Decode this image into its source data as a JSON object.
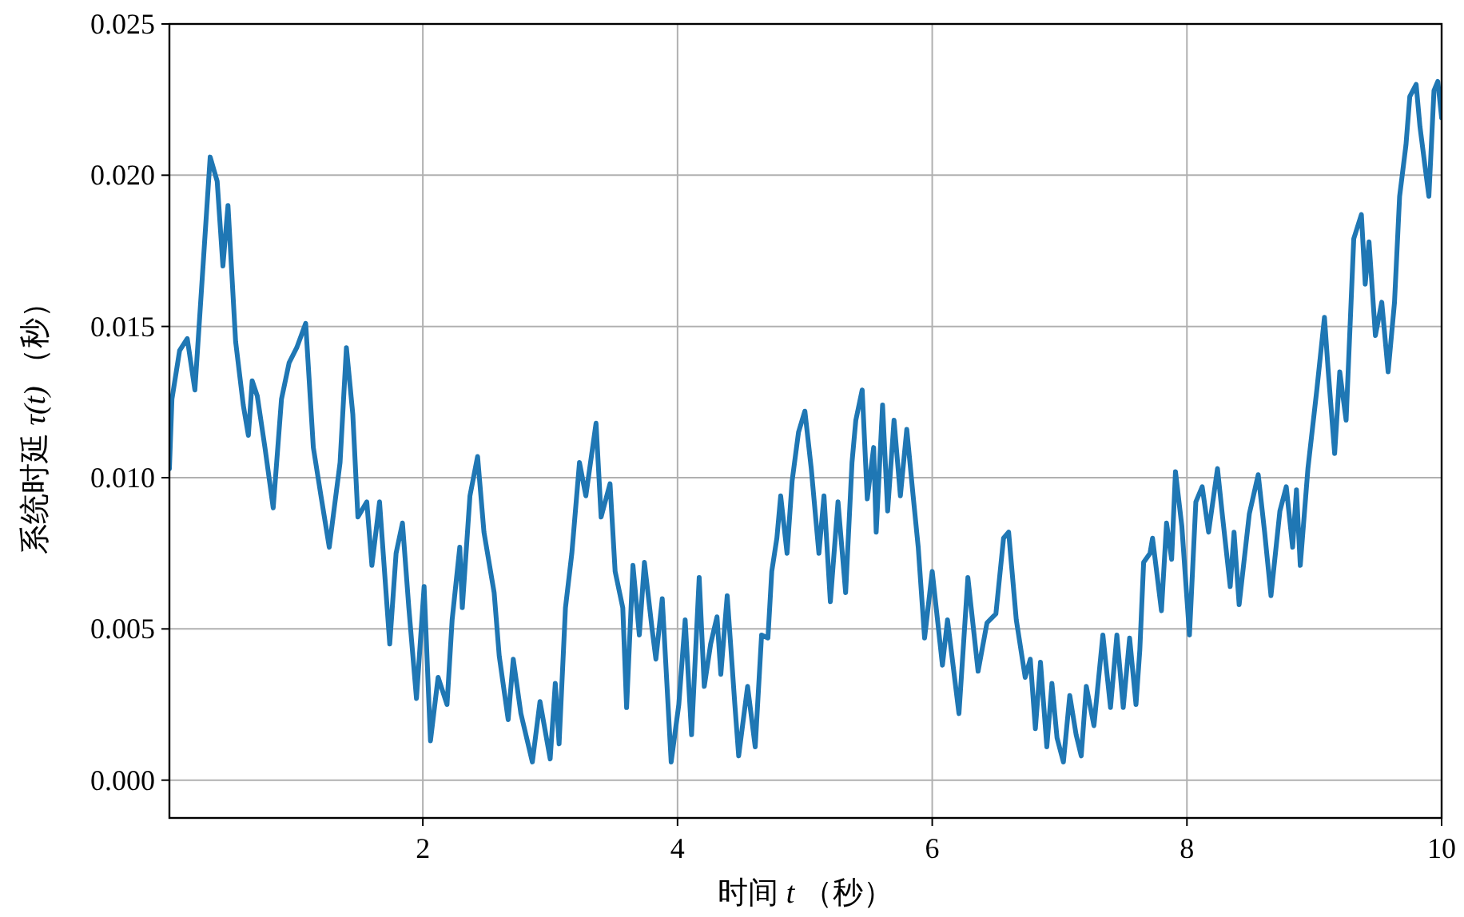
{
  "chart_data": {
    "type": "line",
    "xlabel": "时间 *t* （秒）",
    "ylabel": "系统时延 *τ(t)* （秒）",
    "xlim": [
      0.01,
      10
    ],
    "ylim": [
      -0.00125,
      0.025
    ],
    "xticks": [
      2,
      4,
      6,
      8,
      10
    ],
    "yticks": [
      {
        "value": 0,
        "label": "0.000"
      },
      {
        "value": 0.005,
        "label": "0.005"
      },
      {
        "value": 0.01,
        "label": "0.010"
      },
      {
        "value": 0.015,
        "label": "0.015"
      },
      {
        "value": 0.02,
        "label": "0.020"
      },
      {
        "value": 0.025,
        "label": "0.025"
      }
    ],
    "grid": true,
    "marker": "none",
    "line_style": "solid",
    "series": [
      {
        "color": "#1f77b4",
        "x": [
          0.01,
          0.03,
          0.09,
          0.15,
          0.21,
          0.26,
          0.33,
          0.385,
          0.43,
          0.47,
          0.53,
          0.59,
          0.63,
          0.66,
          0.7,
          0.76,
          0.825,
          0.89,
          0.95,
          1.01,
          1.08,
          1.14,
          1.2,
          1.265,
          1.35,
          1.4,
          1.45,
          1.49,
          1.56,
          1.6,
          1.66,
          1.74,
          1.79,
          1.84,
          1.89,
          1.95,
          2.01,
          2.06,
          2.12,
          2.19,
          2.23,
          2.29,
          2.31,
          2.37,
          2.43,
          2.48,
          2.56,
          2.6,
          2.67,
          2.71,
          2.77,
          2.86,
          2.92,
          3.0,
          3.04,
          3.07,
          3.12,
          3.17,
          3.23,
          3.28,
          3.36,
          3.4,
          3.47,
          3.51,
          3.57,
          3.6,
          3.65,
          3.7,
          3.74,
          3.8,
          3.83,
          3.88,
          3.95,
          4.01,
          4.06,
          4.11,
          4.17,
          4.21,
          4.26,
          4.31,
          4.34,
          4.39,
          4.45,
          4.48,
          4.55,
          4.61,
          4.66,
          4.71,
          4.74,
          4.78,
          4.81,
          4.86,
          4.9,
          4.95,
          5.0,
          5.05,
          5.11,
          5.15,
          5.2,
          5.26,
          5.32,
          5.37,
          5.4,
          5.45,
          5.49,
          5.54,
          5.56,
          5.61,
          5.65,
          5.7,
          5.75,
          5.8,
          5.85,
          5.89,
          5.94,
          6.0,
          6.08,
          6.12,
          6.21,
          6.28,
          6.36,
          6.43,
          6.5,
          6.56,
          6.6,
          6.66,
          6.73,
          6.77,
          6.81,
          6.85,
          6.9,
          6.94,
          6.98,
          7.03,
          7.08,
          7.13,
          7.17,
          7.21,
          7.27,
          7.34,
          7.4,
          7.45,
          7.5,
          7.55,
          7.6,
          7.63,
          7.66,
          7.71,
          7.73,
          7.8,
          7.84,
          7.88,
          7.91,
          7.96,
          8.02,
          8.07,
          8.12,
          8.17,
          8.24,
          8.28,
          8.34,
          8.37,
          8.41,
          8.49,
          8.56,
          8.61,
          8.66,
          8.73,
          8.78,
          8.83,
          8.86,
          8.89,
          8.95,
          9.02,
          9.08,
          9.11,
          9.16,
          9.2,
          9.25,
          9.31,
          9.37,
          9.4,
          9.43,
          9.48,
          9.53,
          9.58,
          9.63,
          9.67,
          9.72,
          9.75,
          9.8,
          9.83,
          9.9,
          9.94,
          9.97,
          10.0
        ],
        "values": [
          0.0103,
          0.0126,
          0.0142,
          0.0146,
          0.0129,
          0.0161,
          0.0206,
          0.0198,
          0.017,
          0.019,
          0.0145,
          0.0124,
          0.0114,
          0.0132,
          0.0127,
          0.011,
          0.009,
          0.0126,
          0.0138,
          0.0143,
          0.0151,
          0.011,
          0.0094,
          0.0077,
          0.0105,
          0.0143,
          0.0121,
          0.0087,
          0.0092,
          0.0071,
          0.0092,
          0.0045,
          0.0075,
          0.0085,
          0.0057,
          0.0027,
          0.0064,
          0.0013,
          0.0034,
          0.0025,
          0.0053,
          0.0077,
          0.0057,
          0.0094,
          0.0107,
          0.0082,
          0.0062,
          0.0041,
          0.002,
          0.004,
          0.0022,
          0.0006,
          0.0026,
          0.0007,
          0.0032,
          0.0012,
          0.0057,
          0.0075,
          0.0105,
          0.0094,
          0.0118,
          0.0087,
          0.0098,
          0.0069,
          0.0057,
          0.0024,
          0.0071,
          0.0048,
          0.0072,
          0.005,
          0.004,
          0.006,
          0.0006,
          0.0025,
          0.0053,
          0.0015,
          0.0067,
          0.0031,
          0.0045,
          0.0054,
          0.0035,
          0.0061,
          0.0025,
          0.0008,
          0.0031,
          0.0011,
          0.0048,
          0.0047,
          0.0069,
          0.008,
          0.0094,
          0.0075,
          0.0099,
          0.0115,
          0.0122,
          0.0103,
          0.0075,
          0.0094,
          0.0059,
          0.0092,
          0.0062,
          0.0105,
          0.0119,
          0.0129,
          0.0093,
          0.011,
          0.0082,
          0.0124,
          0.0089,
          0.0119,
          0.0094,
          0.0116,
          0.0094,
          0.0077,
          0.0047,
          0.0069,
          0.0038,
          0.0053,
          0.0022,
          0.0067,
          0.0036,
          0.0052,
          0.0055,
          0.008,
          0.0082,
          0.0053,
          0.0034,
          0.004,
          0.0017,
          0.0039,
          0.0011,
          0.0032,
          0.0014,
          0.0006,
          0.0028,
          0.0015,
          0.0008,
          0.0031,
          0.0018,
          0.0048,
          0.0024,
          0.0048,
          0.0024,
          0.0047,
          0.0025,
          0.0043,
          0.0072,
          0.0075,
          0.008,
          0.0056,
          0.0085,
          0.0073,
          0.0102,
          0.0084,
          0.0048,
          0.0092,
          0.0097,
          0.0082,
          0.0103,
          0.0087,
          0.0064,
          0.0082,
          0.0058,
          0.0088,
          0.0101,
          0.0082,
          0.0061,
          0.0089,
          0.0097,
          0.0077,
          0.0096,
          0.0071,
          0.0103,
          0.0129,
          0.0153,
          0.0135,
          0.0108,
          0.0135,
          0.0119,
          0.0179,
          0.0187,
          0.0164,
          0.0178,
          0.0147,
          0.0158,
          0.0135,
          0.0158,
          0.0193,
          0.021,
          0.0226,
          0.023,
          0.0216,
          0.0193,
          0.0228,
          0.0231,
          0.0219
        ]
      }
    ]
  }
}
